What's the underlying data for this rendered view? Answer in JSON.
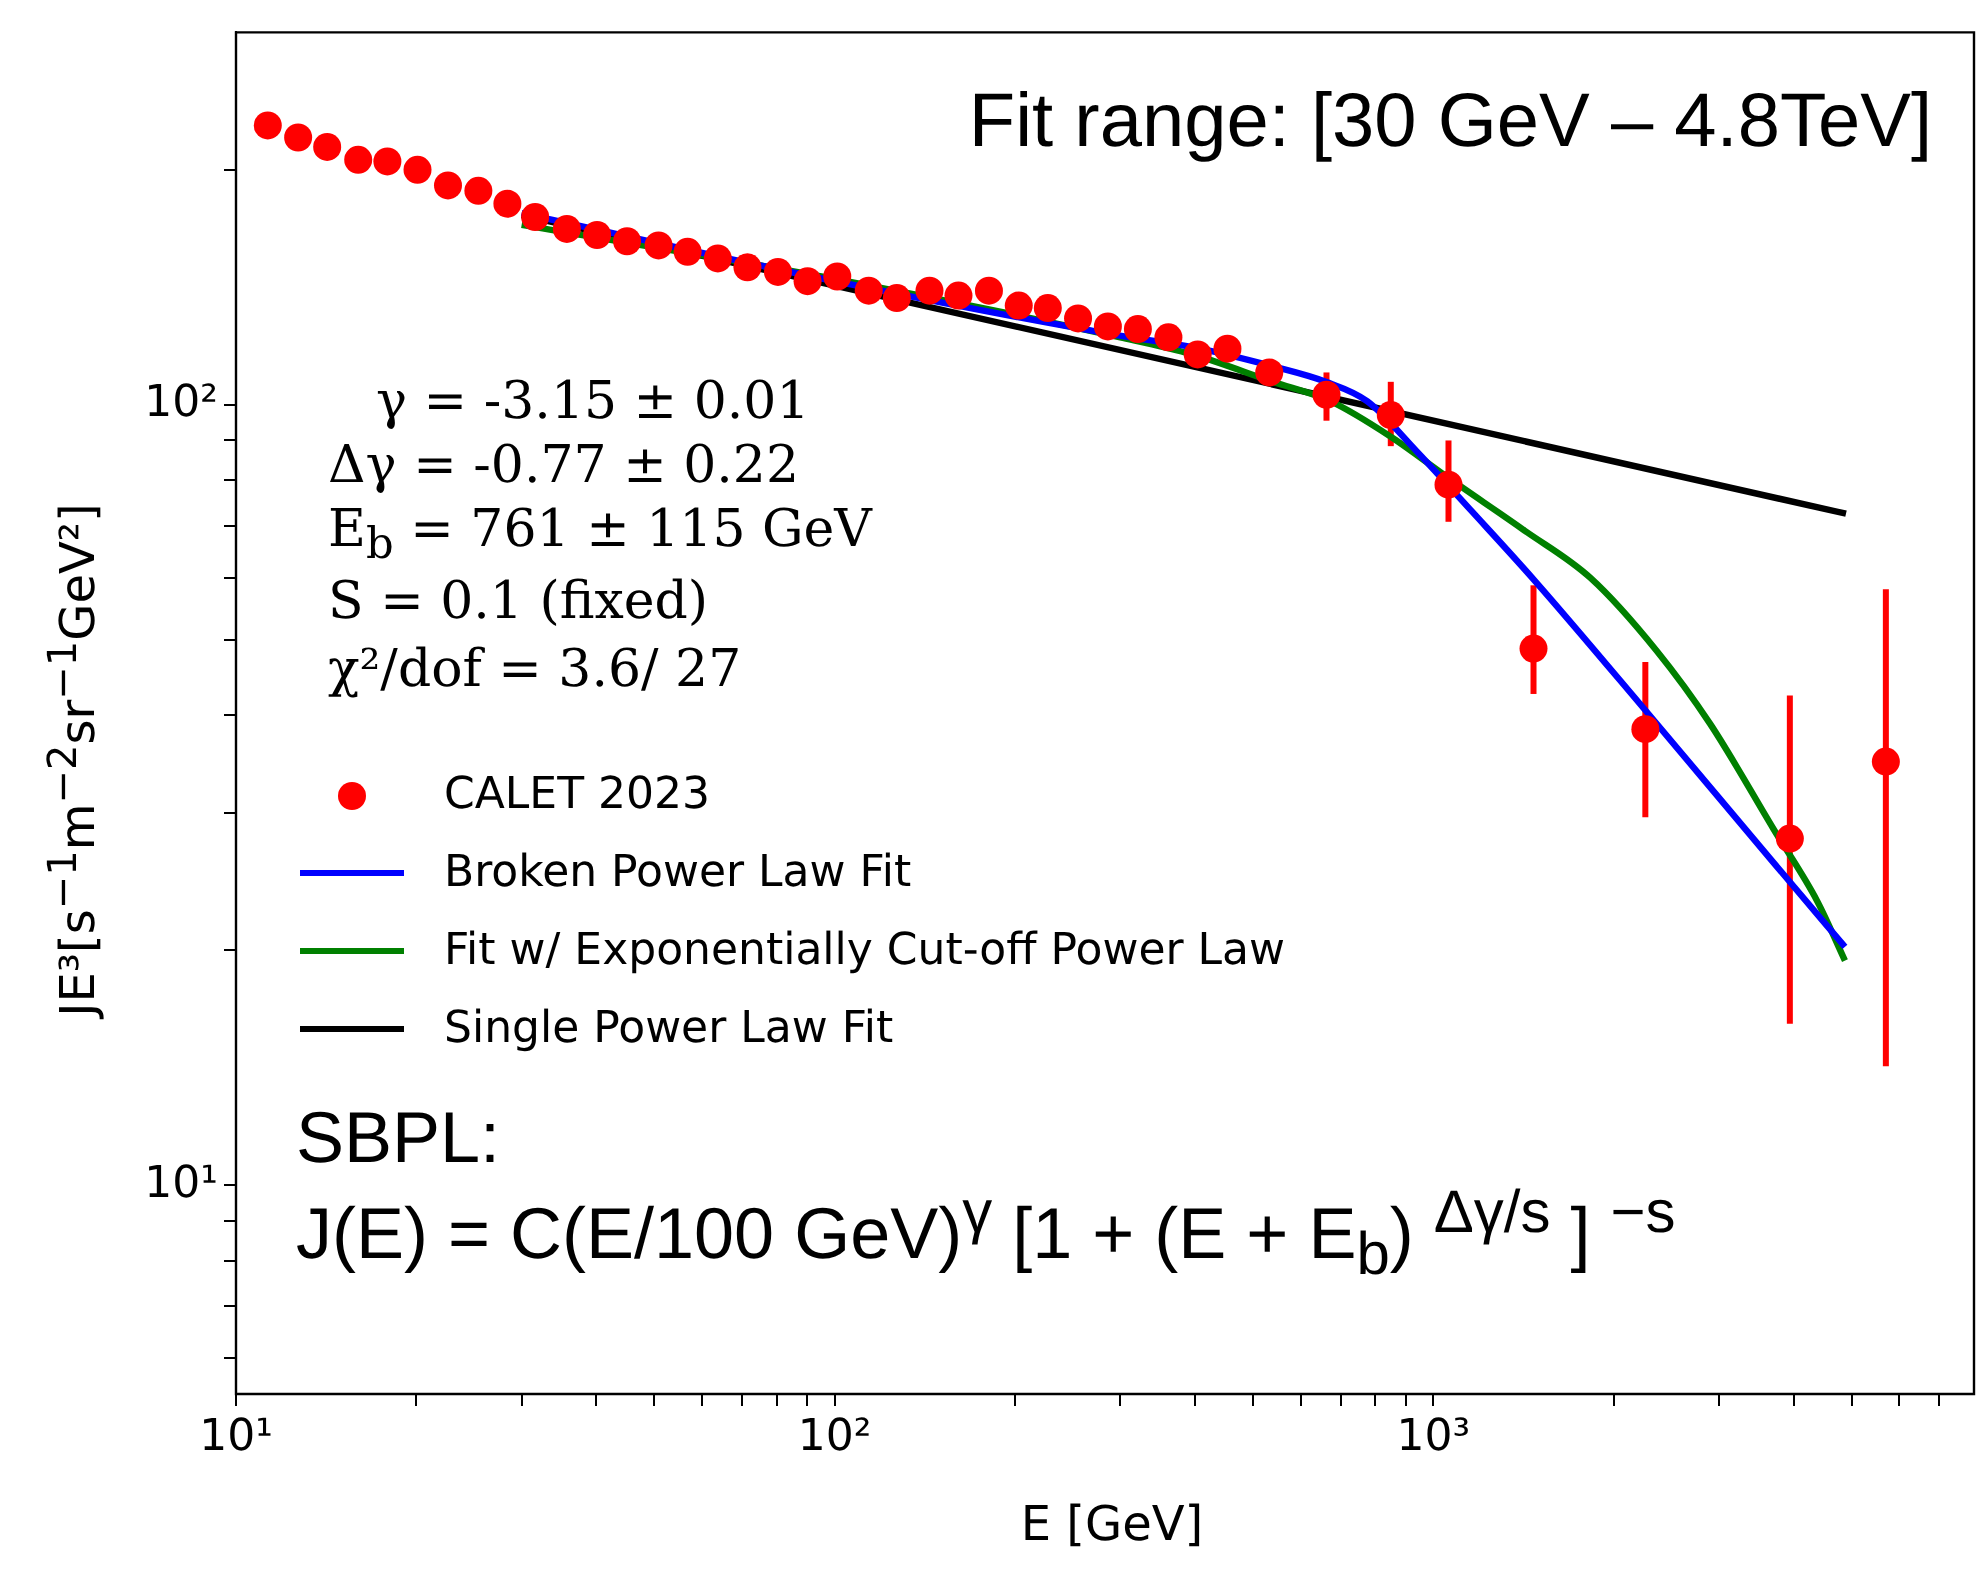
{
  "chart_data": {
    "type": "scatter",
    "xlabel": "E [GeV]",
    "ylabel": "JE³[s$^{−1}$m$^{−2}$sr$^{−1}$GeV²]",
    "log": "xy",
    "grid": false,
    "legend": "left",
    "line_style": "solid",
    "xlim": [
      10,
      8000
    ],
    "ylim": [
      5.4,
      300
    ],
    "xticks": [
      {
        "value": 10,
        "label": "10¹"
      },
      {
        "value": 20,
        "label": null
      },
      {
        "value": 30,
        "label": null
      },
      {
        "value": 40,
        "label": null
      },
      {
        "value": 50,
        "label": null
      },
      {
        "value": 60,
        "label": null
      },
      {
        "value": 70,
        "label": null
      },
      {
        "value": 80,
        "label": null
      },
      {
        "value": 90,
        "label": null
      },
      {
        "value": 100,
        "label": "10²"
      },
      {
        "value": 200,
        "label": null
      },
      {
        "value": 300,
        "label": null
      },
      {
        "value": 400,
        "label": null
      },
      {
        "value": 500,
        "label": null
      },
      {
        "value": 600,
        "label": null
      },
      {
        "value": 700,
        "label": null
      },
      {
        "value": 800,
        "label": null
      },
      {
        "value": 900,
        "label": null
      },
      {
        "value": 1000,
        "label": "10³"
      },
      {
        "value": 2000,
        "label": null
      },
      {
        "value": 3000,
        "label": null
      },
      {
        "value": 4000,
        "label": null
      },
      {
        "value": 5000,
        "label": null
      },
      {
        "value": 6000,
        "label": null
      },
      {
        "value": 7000,
        "label": null
      }
    ],
    "yticks": [
      {
        "value": 6,
        "label": null
      },
      {
        "value": 7,
        "label": null
      },
      {
        "value": 8,
        "label": null
      },
      {
        "value": 9,
        "label": null
      },
      {
        "value": 10,
        "label": "10¹"
      },
      {
        "value": 20,
        "label": null
      },
      {
        "value": 30,
        "label": null
      },
      {
        "value": 40,
        "label": null
      },
      {
        "value": 50,
        "label": null
      },
      {
        "value": 60,
        "label": null
      },
      {
        "value": 70,
        "label": null
      },
      {
        "value": 80,
        "label": null
      },
      {
        "value": 90,
        "label": null
      },
      {
        "value": 100,
        "label": "10²"
      },
      {
        "value": 200,
        "label": null
      }
    ],
    "series": [
      {
        "name": "CALET 2023",
        "marker": "circle",
        "color": "#ff0000",
        "x": [
          11.3,
          12.7,
          14.2,
          16.0,
          17.9,
          20.1,
          22.6,
          25.4,
          28.4,
          31.6,
          35.7,
          40.1,
          45.0,
          50.8,
          56.8,
          63.8,
          71.5,
          80.4,
          90.1,
          101,
          114,
          127,
          144,
          161,
          181,
          203,
          227,
          255,
          286,
          321,
          361,
          404,
          453,
          532,
          663,
          849,
          1060,
          1470,
          2260,
          3940,
          5700
        ],
        "values": [
          228,
          220,
          214,
          206,
          205,
          200,
          191,
          188,
          181,
          174,
          168,
          165,
          162,
          160,
          157,
          154,
          150,
          148,
          144,
          146,
          140,
          137,
          140,
          138,
          140,
          134,
          133,
          129,
          126,
          125,
          122,
          116,
          118,
          110,
          103,
          97,
          79,
          48.7,
          38.4,
          27.8,
          34.9
        ],
        "errors": [
          null,
          null,
          null,
          null,
          null,
          null,
          null,
          null,
          null,
          null,
          null,
          null,
          null,
          null,
          null,
          null,
          null,
          null,
          null,
          null,
          null,
          null,
          null,
          null,
          null,
          null,
          null,
          null,
          null,
          null,
          null,
          null,
          null,
          null,
          [
            95.4,
            110
          ],
          [
            88.5,
            107
          ],
          [
            70.8,
            90
          ],
          [
            42.6,
            58.7
          ],
          [
            29.6,
            46.8
          ],
          [
            16.1,
            42.4
          ],
          [
            14.2,
            58
          ]
        ]
      },
      {
        "name": "Broken Power Law Fit",
        "type": "line",
        "color": "#0000ff",
        "x": [
          30,
          100,
          292,
          396,
          539,
          661,
          776,
          940,
          1160,
          1480,
          2260,
          3700,
          4870
        ],
        "values": [
          176,
          144,
          123,
          118.5,
          112,
          107,
          101,
          87,
          73,
          59.4,
          40.6,
          25.9,
          20.2
        ]
      },
      {
        "name": "Fit w/ Exponentially Cut-off Power Law",
        "type": "line",
        "color": "#008000",
        "x": [
          30,
          100,
          300,
          396,
          539,
          674,
          849,
          1050,
          1420,
          1830,
          2360,
          2900,
          3700,
          4380,
          4870
        ],
        "values": [
          170,
          145,
          122,
          116,
          107,
          101,
          91,
          81,
          69,
          60,
          48.4,
          39,
          28.6,
          23.1,
          19.4
        ]
      },
      {
        "name": "Single Power Law Fit",
        "type": "line",
        "color": "#000000",
        "x": [
          30,
          4890
        ],
        "values": [
          175,
          72.5
        ]
      }
    ],
    "annotations": [
      "Fit range: [30 GeV – 4.8TeV]",
      "γ = -3.15 ± 0.01",
      "Δγ = -0.77 ± 0.22",
      "E$_{b}$ = 761 ± 115 GeV",
      "S = 0.1 (fixed)",
      "χ²/dof = 3.6/ 27",
      "SBPL:",
      "J(E) = C(E/100 GeV)$^{γ}$ [1 + (E + E$_{b}$) $^{Δγ/s}$ ] $^{−s}$"
    ]
  }
}
